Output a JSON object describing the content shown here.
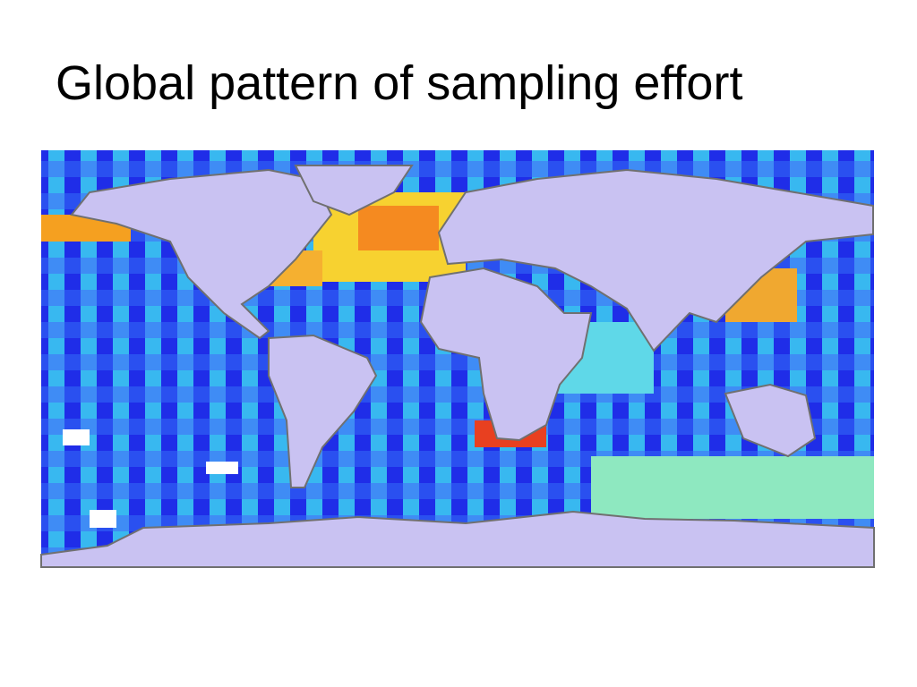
{
  "header": {
    "title": "Global pattern of sampling effort"
  }
}
